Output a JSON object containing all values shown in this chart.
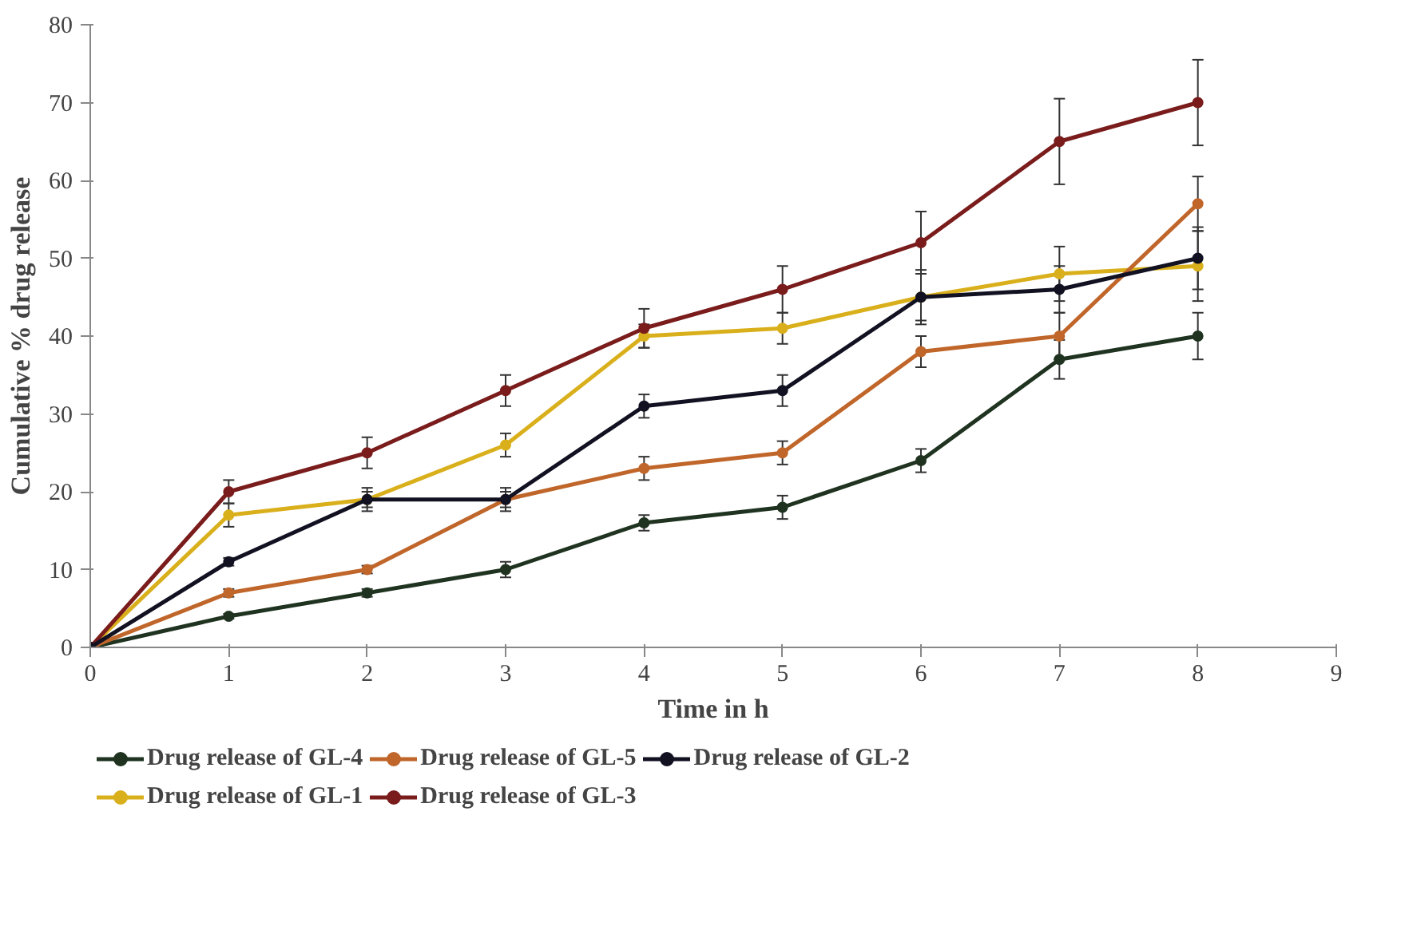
{
  "chart_data": {
    "type": "line",
    "xlabel": "Time in h",
    "ylabel": "Cumulative % drug release",
    "x": [
      0,
      1,
      2,
      3,
      4,
      5,
      6,
      7,
      8
    ],
    "series": [
      {
        "name": "Drug release of GL-4",
        "color": "#1f3320",
        "values": [
          0,
          4,
          7,
          10,
          16,
          18,
          24,
          37,
          40
        ],
        "errors": [
          null,
          0.3,
          0.5,
          1,
          1,
          1.5,
          1.5,
          2.5,
          3
        ]
      },
      {
        "name": "Drug release of GL-1",
        "color": "#d9b01c",
        "values": [
          0,
          17,
          19,
          26,
          40,
          41,
          45,
          48,
          49
        ],
        "errors": [
          null,
          1.5,
          1,
          1.5,
          1.5,
          2,
          3,
          3.5,
          4.5
        ]
      },
      {
        "name": "Drug release of GL-5",
        "color": "#c0662a",
        "values": [
          0,
          7,
          10,
          19,
          23,
          25,
          38,
          40,
          57
        ],
        "errors": [
          null,
          0.5,
          0.5,
          1.5,
          1.5,
          1.5,
          2,
          3,
          3.5
        ]
      },
      {
        "name": "Drug release of GL-3",
        "color": "#7a1c1c",
        "values": [
          0,
          20,
          25,
          33,
          41,
          46,
          52,
          65,
          70
        ],
        "errors": [
          null,
          1.5,
          2,
          2,
          2.5,
          3,
          4,
          5.5,
          5.5
        ]
      },
      {
        "name": "Drug release of GL-2",
        "color": "#111122",
        "values": [
          0,
          11,
          19,
          19,
          31,
          33,
          45,
          46,
          50
        ],
        "errors": [
          null,
          0.5,
          1.5,
          1,
          1.5,
          2,
          3.5,
          3,
          4
        ]
      }
    ],
    "xlim": [
      0,
      9
    ],
    "xticks": [
      0,
      1,
      2,
      3,
      4,
      5,
      6,
      7,
      8,
      9
    ],
    "ylim": [
      0,
      80
    ],
    "yticks": [
      0,
      10,
      20,
      30,
      40,
      50,
      60,
      70,
      80
    ],
    "grid": false,
    "legend": "bottom",
    "marker": "circle",
    "line_style": "solid"
  }
}
